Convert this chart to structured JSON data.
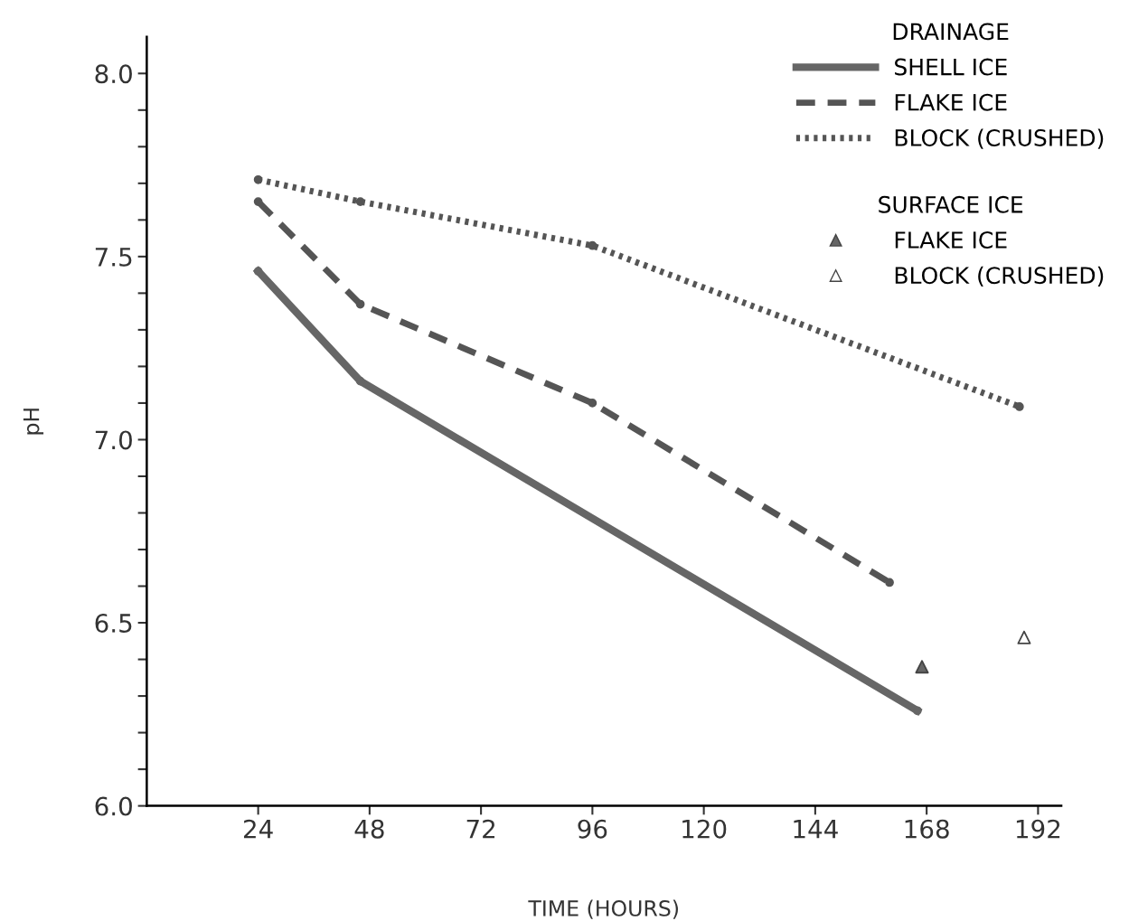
{
  "chart_data": {
    "type": "line",
    "xlabel": "TIME (HOURS)",
    "ylabel": "pH",
    "legend_title": "DRAINAGE",
    "annotations": [
      "SURFACE ICE"
    ],
    "series": [
      {
        "name": "SHELL ICE",
        "color": "#666666",
        "line_style": "solid",
        "marker": "circle",
        "x": [
          24,
          46,
          166
        ],
        "values": [
          7.46,
          7.16,
          6.26
        ]
      },
      {
        "name": "FLAKE ICE",
        "color": "#555555",
        "line_style": "dashed",
        "marker": "circle",
        "x": [
          24,
          46,
          96,
          160
        ],
        "values": [
          7.65,
          7.37,
          7.1,
          6.61
        ]
      },
      {
        "name": "BLOCK (CRUSHED)",
        "color": "#555555",
        "line_style": "dotted",
        "marker": "circle",
        "x": [
          24,
          46,
          96,
          188
        ],
        "values": [
          7.71,
          7.65,
          7.53,
          7.09
        ]
      },
      {
        "name": "FLAKE ICE",
        "type": "scatter",
        "color": "#666666",
        "marker": "triangle",
        "x": [
          167
        ],
        "values": [
          6.38
        ]
      },
      {
        "name": "BLOCK (CRUSHED)",
        "type": "scatter",
        "color": "#ffffff",
        "marker": "triangle",
        "x": [
          189
        ],
        "values": [
          6.46
        ]
      }
    ],
    "xlim": [
      0,
      197
    ],
    "ylim": [
      6.0,
      8.1
    ],
    "xticks": [
      24,
      48,
      72,
      96,
      120,
      144,
      168,
      192
    ],
    "yticks": [
      {
        "value": 6.0,
        "label": "6.0"
      },
      {
        "value": 6.1,
        "label": null
      },
      {
        "value": 6.2,
        "label": null
      },
      {
        "value": 6.3,
        "label": null
      },
      {
        "value": 6.4,
        "label": null
      },
      {
        "value": 6.5,
        "label": "6.5"
      },
      {
        "value": 6.6,
        "label": null
      },
      {
        "value": 6.7,
        "label": null
      },
      {
        "value": 6.8,
        "label": null
      },
      {
        "value": 6.9,
        "label": null
      },
      {
        "value": 7.0,
        "label": "7.0"
      },
      {
        "value": 7.1,
        "label": null
      },
      {
        "value": 7.2,
        "label": null
      },
      {
        "value": 7.3,
        "label": null
      },
      {
        "value": 7.4,
        "label": null
      },
      {
        "value": 7.5,
        "label": "7.5"
      },
      {
        "value": 7.6,
        "label": null
      },
      {
        "value": 7.7,
        "label": null
      },
      {
        "value": 7.8,
        "label": null
      },
      {
        "value": 7.9,
        "label": null
      },
      {
        "value": 8.0,
        "label": "8.0"
      }
    ],
    "grid": false,
    "legend": "top right"
  }
}
